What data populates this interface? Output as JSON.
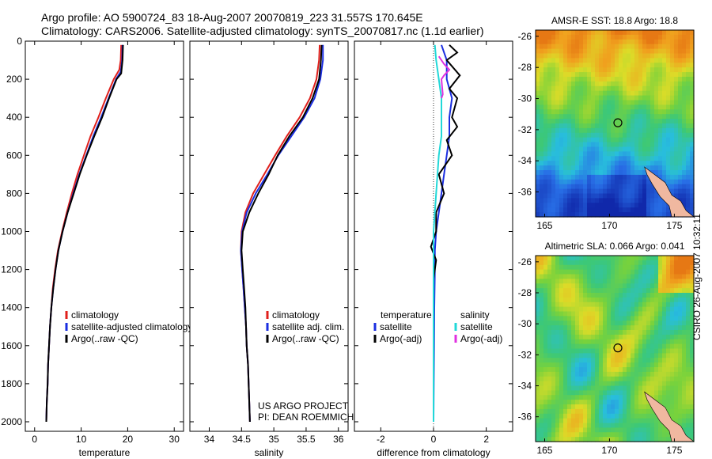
{
  "header": {
    "line1": "Argo profile: AO 5900724_83 18-Aug-2007 20070819_223 31.557S 170.645E",
    "line2": "Climatology: CARS2006. Satellite-adjusted climatology: synTS_20070817.nc (1.1d earlier)"
  },
  "footer": {
    "credit": "CSIRO 26-Aug-2007 10:32:11",
    "project1": "US ARGO PROJECT",
    "project2": "PI: DEAN ROEMMICH"
  },
  "colors": {
    "climatology": "#e0201c",
    "satellite": "#1a2ee0",
    "argo": "#000000",
    "sal_satellite": "#22d8d8",
    "sal_argo": "#e030e0",
    "land": "#f0b8a0"
  },
  "chart_data": [
    {
      "type": "line",
      "name": "temperature-profile",
      "xlabel": "temperature",
      "ylabel": "",
      "xlim": [
        -2,
        32
      ],
      "ylim": [
        2050,
        0
      ],
      "xticks": [
        0,
        10,
        20,
        30
      ],
      "yticks": [
        0,
        200,
        400,
        600,
        800,
        1000,
        1200,
        1400,
        1600,
        1800,
        2000
      ],
      "legend": {
        "position": "lower-right",
        "entries": [
          "climatology",
          "satellite-adjusted climatology",
          "Argo(..raw -QC)"
        ]
      },
      "series": [
        {
          "name": "climatology",
          "color": "#e0201c",
          "points": [
            [
              18.6,
              20
            ],
            [
              18.5,
              100
            ],
            [
              18.2,
              150
            ],
            [
              17.0,
              200
            ],
            [
              15.3,
              300
            ],
            [
              13.7,
              400
            ],
            [
              12.0,
              500
            ],
            [
              10.6,
              600
            ],
            [
              9.2,
              700
            ],
            [
              8.0,
              800
            ],
            [
              6.9,
              900
            ],
            [
              5.9,
              1000
            ],
            [
              5.0,
              1100
            ],
            [
              4.4,
              1200
            ],
            [
              3.9,
              1300
            ],
            [
              3.6,
              1400
            ],
            [
              3.3,
              1500
            ],
            [
              3.1,
              1600
            ],
            [
              2.9,
              1700
            ],
            [
              2.8,
              1800
            ],
            [
              2.6,
              1900
            ],
            [
              2.5,
              2000
            ]
          ]
        },
        {
          "name": "satellite-adjusted climatology",
          "color": "#1a2ee0",
          "points": [
            [
              18.9,
              20
            ],
            [
              18.8,
              100
            ],
            [
              18.5,
              160
            ],
            [
              17.5,
              200
            ],
            [
              15.9,
              300
            ],
            [
              14.3,
              400
            ],
            [
              12.6,
              500
            ],
            [
              11.1,
              600
            ],
            [
              9.6,
              700
            ],
            [
              8.3,
              800
            ],
            [
              7.1,
              900
            ],
            [
              6.0,
              1000
            ],
            [
              5.1,
              1100
            ],
            [
              4.5,
              1200
            ],
            [
              4.0,
              1300
            ],
            [
              3.6,
              1400
            ],
            [
              3.3,
              1500
            ],
            [
              3.1,
              1600
            ],
            [
              2.9,
              1700
            ],
            [
              2.8,
              1800
            ],
            [
              2.6,
              1900
            ],
            [
              2.5,
              2000
            ]
          ]
        },
        {
          "name": "Argo(..raw -QC)",
          "color": "#000000",
          "points": [
            [
              19.0,
              20
            ],
            [
              18.9,
              100
            ],
            [
              18.6,
              170
            ],
            [
              17.6,
              200
            ],
            [
              16.0,
              300
            ],
            [
              14.5,
              400
            ],
            [
              12.8,
              500
            ],
            [
              11.2,
              600
            ],
            [
              9.7,
              700
            ],
            [
              8.4,
              800
            ],
            [
              7.1,
              900
            ],
            [
              6.0,
              1000
            ],
            [
              5.1,
              1100
            ],
            [
              4.5,
              1200
            ],
            [
              4.0,
              1300
            ],
            [
              3.6,
              1400
            ],
            [
              3.3,
              1500
            ],
            [
              3.1,
              1600
            ],
            [
              2.9,
              1700
            ],
            [
              2.8,
              1800
            ],
            [
              2.6,
              1900
            ],
            [
              2.5,
              2000
            ]
          ]
        }
      ]
    },
    {
      "type": "line",
      "name": "salinity-profile",
      "xlabel": "salinity",
      "ylabel": "",
      "xlim": [
        33.7,
        36.15
      ],
      "ylim": [
        2050,
        0
      ],
      "xticks": [
        34,
        34.5,
        35,
        35.5,
        36
      ],
      "legend": {
        "position": "lower-right",
        "entries": [
          "climatology",
          "satellite adj. clim.",
          "Argo(..raw -QC)"
        ]
      },
      "series": [
        {
          "name": "climatology",
          "color": "#e0201c",
          "points": [
            [
              35.71,
              20
            ],
            [
              35.7,
              100
            ],
            [
              35.66,
              200
            ],
            [
              35.56,
              300
            ],
            [
              35.4,
              400
            ],
            [
              35.2,
              500
            ],
            [
              35.02,
              600
            ],
            [
              34.85,
              700
            ],
            [
              34.68,
              800
            ],
            [
              34.56,
              900
            ],
            [
              34.5,
              1000
            ],
            [
              34.49,
              1100
            ],
            [
              34.51,
              1200
            ],
            [
              34.53,
              1300
            ],
            [
              34.55,
              1400
            ],
            [
              34.57,
              1500
            ],
            [
              34.58,
              1600
            ],
            [
              34.6,
              1700
            ],
            [
              34.61,
              1800
            ],
            [
              34.62,
              1900
            ],
            [
              34.63,
              2000
            ]
          ]
        },
        {
          "name": "satellite adj. clim.",
          "color": "#1a2ee0",
          "points": [
            [
              35.76,
              20
            ],
            [
              35.76,
              100
            ],
            [
              35.72,
              200
            ],
            [
              35.63,
              300
            ],
            [
              35.47,
              400
            ],
            [
              35.27,
              500
            ],
            [
              35.07,
              600
            ],
            [
              34.9,
              700
            ],
            [
              34.72,
              800
            ],
            [
              34.58,
              900
            ],
            [
              34.51,
              1000
            ],
            [
              34.49,
              1100
            ],
            [
              34.51,
              1200
            ],
            [
              34.53,
              1300
            ],
            [
              34.55,
              1400
            ],
            [
              34.57,
              1500
            ],
            [
              34.58,
              1600
            ],
            [
              34.6,
              1700
            ],
            [
              34.61,
              1800
            ],
            [
              34.62,
              1900
            ],
            [
              34.63,
              2000
            ]
          ]
        },
        {
          "name": "Argo(..raw -QC)",
          "color": "#000000",
          "points": [
            [
              35.74,
              20
            ],
            [
              35.73,
              100
            ],
            [
              35.7,
              200
            ],
            [
              35.6,
              300
            ],
            [
              35.45,
              400
            ],
            [
              35.24,
              500
            ],
            [
              35.06,
              600
            ],
            [
              34.92,
              700
            ],
            [
              34.76,
              800
            ],
            [
              34.62,
              900
            ],
            [
              34.52,
              1000
            ],
            [
              34.5,
              1100
            ],
            [
              34.52,
              1200
            ],
            [
              34.54,
              1300
            ],
            [
              34.56,
              1400
            ],
            [
              34.57,
              1500
            ],
            [
              34.58,
              1600
            ],
            [
              34.6,
              1700
            ],
            [
              34.61,
              1800
            ],
            [
              34.62,
              1900
            ],
            [
              34.63,
              2000
            ]
          ]
        }
      ]
    },
    {
      "type": "line",
      "name": "difference-profile",
      "xlabel": "difference from climatology",
      "ylabel": "",
      "xlim": [
        -3,
        3
      ],
      "ylim": [
        2050,
        0
      ],
      "xticks": [
        -2,
        0,
        2
      ],
      "legend": {
        "position": "lower-left",
        "headers": [
          "temperature",
          "salinity"
        ],
        "entries": [
          "satellite",
          "Argo(-adj)",
          "satellite",
          "Argo(-adj)"
        ]
      },
      "series": [
        {
          "name": "temperature satellite",
          "color": "#1a2ee0",
          "points": [
            [
              0.3,
              20
            ],
            [
              0.5,
              100
            ],
            [
              0.5,
              200
            ],
            [
              0.7,
              300
            ],
            [
              0.6,
              400
            ],
            [
              0.6,
              500
            ],
            [
              0.5,
              600
            ],
            [
              0.4,
              700
            ],
            [
              0.3,
              800
            ],
            [
              0.2,
              900
            ],
            [
              0.1,
              1000
            ],
            [
              0.05,
              1100
            ],
            [
              0.05,
              1200
            ],
            [
              0.03,
              1400
            ],
            [
              0.02,
              1600
            ],
            [
              0.01,
              1800
            ],
            [
              0.0,
              2000
            ]
          ]
        },
        {
          "name": "temperature Argo(-adj)",
          "color": "#000000",
          "points": [
            [
              0.6,
              20
            ],
            [
              0.9,
              60
            ],
            [
              0.5,
              100
            ],
            [
              1.0,
              180
            ],
            [
              0.6,
              250
            ],
            [
              0.9,
              300
            ],
            [
              0.7,
              400
            ],
            [
              0.9,
              450
            ],
            [
              0.5,
              520
            ],
            [
              0.7,
              600
            ],
            [
              0.2,
              700
            ],
            [
              0.4,
              800
            ],
            [
              0.1,
              900
            ],
            [
              0.1,
              1000
            ],
            [
              -0.1,
              1080
            ],
            [
              0.1,
              1150
            ],
            [
              0.0,
              1250
            ],
            [
              0.0,
              1400
            ],
            [
              0.0,
              1600
            ],
            [
              0.0,
              1800
            ],
            [
              0.0,
              2000
            ]
          ]
        },
        {
          "name": "salinity satellite",
          "color": "#22d8d8",
          "points": [
            [
              0.05,
              20
            ],
            [
              0.1,
              100
            ],
            [
              0.2,
              200
            ],
            [
              0.3,
              300
            ],
            [
              0.3,
              400
            ],
            [
              0.3,
              500
            ],
            [
              0.2,
              600
            ],
            [
              0.15,
              700
            ],
            [
              0.1,
              800
            ],
            [
              0.05,
              900
            ],
            [
              0.0,
              1000
            ],
            [
              0.0,
              1200
            ],
            [
              0.0,
              1400
            ],
            [
              0.0,
              1600
            ],
            [
              0.0,
              1800
            ],
            [
              0.0,
              2000
            ]
          ]
        },
        {
          "name": "salinity Argo(-adj)",
          "color": "#e030e0",
          "points": [
            [
              0.2,
              80
            ],
            [
              0.4,
              120
            ],
            [
              0.6,
              150
            ],
            [
              0.4,
              180
            ],
            [
              0.3,
              200
            ],
            [
              0.35,
              280
            ],
            [
              0.3,
              300
            ]
          ]
        }
      ]
    },
    {
      "type": "heatmap",
      "name": "sst-map",
      "title": "AMSR-E SST: 18.8 Argo: 18.8",
      "xticks": [
        165,
        170,
        175
      ],
      "yticks": [
        -26,
        -28,
        -30,
        -32,
        -34,
        -36
      ],
      "xlim": [
        164.3,
        176.5
      ],
      "ylim": [
        -37.6,
        -25.6
      ],
      "argo_position": [
        170.645,
        -31.557
      ]
    },
    {
      "type": "heatmap",
      "name": "sla-map",
      "title": "Altimetric SLA: 0.066 Argo: 0.041",
      "xticks": [
        165,
        170,
        175
      ],
      "yticks": [
        -26,
        -28,
        -30,
        -32,
        -34,
        -36
      ],
      "xlim": [
        164.3,
        176.5
      ],
      "ylim": [
        -37.6,
        -25.6
      ],
      "argo_position": [
        170.645,
        -31.557
      ]
    }
  ]
}
